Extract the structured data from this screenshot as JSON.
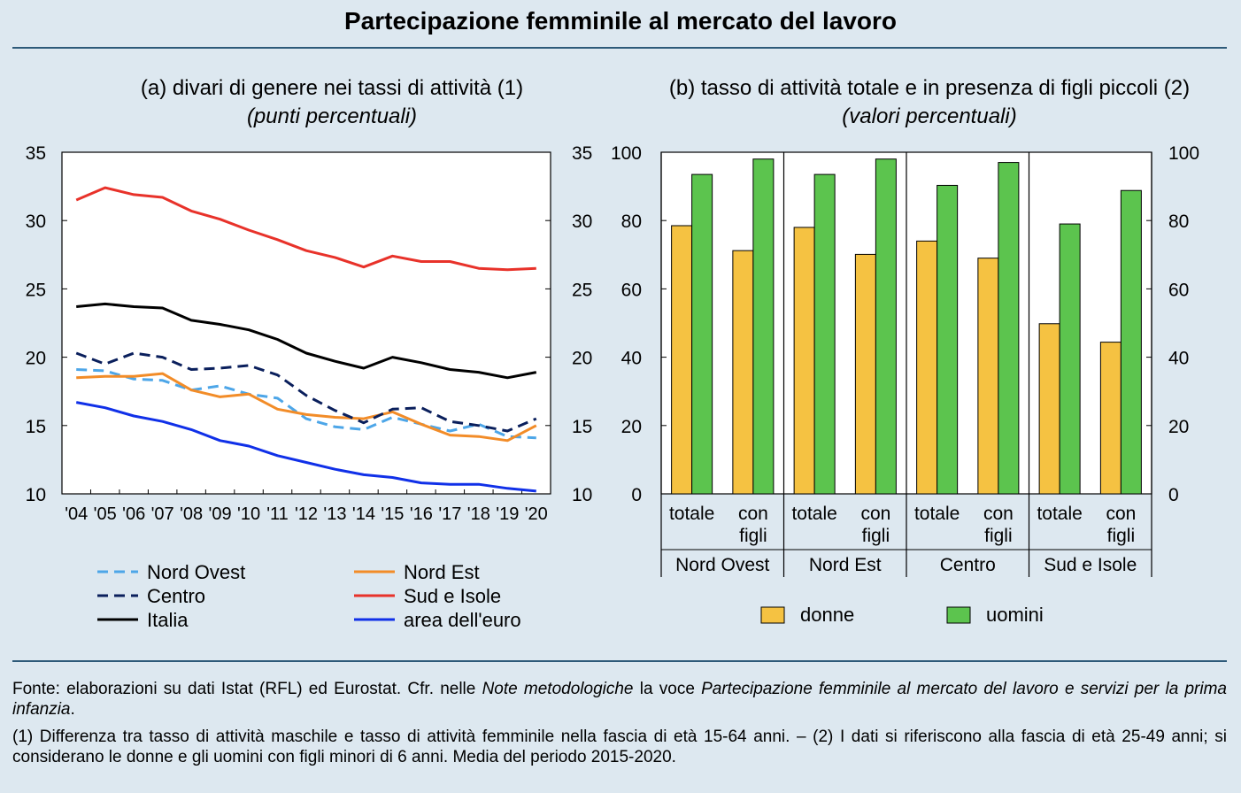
{
  "title": "Partecipazione femminile al mercato del lavoro",
  "panel_a": {
    "title": "(a) divari di genere nei tassi di attività (1)",
    "subtitle": "(punti percentuali)"
  },
  "panel_b": {
    "title": "(b) tasso di attività totale e in presenza di figli piccoli (2)",
    "subtitle": "(valori percentuali)"
  },
  "colors": {
    "background": "#dde8f0",
    "rule": "#2e5a79",
    "nord_ovest": "#4da6e8",
    "nord_est": "#f28c28",
    "centro": "#0a1f5c",
    "sud_isole": "#e8322a",
    "italia": "#000000",
    "euro": "#1030e8",
    "donne": "#f5c242",
    "uomini": "#5cc44e"
  },
  "chart_data": [
    {
      "type": "line",
      "x": [
        "'04",
        "'05",
        "'06",
        "'07",
        "'08",
        "'09",
        "'10",
        "'11",
        "'12",
        "'13",
        "'14",
        "'15",
        "'16",
        "'17",
        "'18",
        "'19",
        "'20"
      ],
      "ylim": [
        10,
        35
      ],
      "yticks": [
        10,
        15,
        20,
        25,
        30,
        35
      ],
      "series": [
        {
          "name": "Nord Ovest",
          "style": "dashed",
          "color": "#4da6e8",
          "values": [
            19.1,
            19.0,
            18.4,
            18.3,
            17.6,
            17.9,
            17.3,
            17.0,
            15.5,
            14.9,
            14.7,
            15.6,
            15.1,
            14.6,
            15.1,
            14.2,
            14.1
          ]
        },
        {
          "name": "Nord Est",
          "style": "solid",
          "color": "#f28c28",
          "values": [
            18.5,
            18.6,
            18.6,
            18.8,
            17.6,
            17.1,
            17.3,
            16.2,
            15.8,
            15.6,
            15.5,
            16.0,
            15.1,
            14.3,
            14.2,
            13.9,
            15.0
          ]
        },
        {
          "name": "Centro",
          "style": "dashed",
          "color": "#0a1f5c",
          "values": [
            20.3,
            19.5,
            20.3,
            20.0,
            19.1,
            19.2,
            19.4,
            18.7,
            17.2,
            16.1,
            15.2,
            16.2,
            16.3,
            15.3,
            15.0,
            14.6,
            15.5
          ]
        },
        {
          "name": "Sud e Isole",
          "style": "solid",
          "color": "#e8322a",
          "values": [
            31.5,
            32.4,
            31.9,
            31.7,
            30.7,
            30.1,
            29.3,
            28.6,
            27.8,
            27.3,
            26.6,
            27.4,
            27.0,
            27.0,
            26.5,
            26.4,
            26.5
          ]
        },
        {
          "name": "Italia",
          "style": "solid",
          "color": "#000000",
          "values": [
            23.7,
            23.9,
            23.7,
            23.6,
            22.7,
            22.4,
            22.0,
            21.3,
            20.3,
            19.7,
            19.2,
            20.0,
            19.6,
            19.1,
            18.9,
            18.5,
            18.9
          ]
        },
        {
          "name": "area dell'euro",
          "style": "solid",
          "color": "#1030e8",
          "values": [
            16.7,
            16.3,
            15.7,
            15.3,
            14.7,
            13.9,
            13.5,
            12.8,
            12.3,
            11.8,
            11.4,
            11.2,
            10.8,
            10.7,
            10.7,
            10.4,
            10.2
          ]
        }
      ],
      "legend": "below"
    },
    {
      "type": "bar",
      "groups": [
        {
          "label": "Nord Ovest",
          "categories": [
            "totale",
            "con figli"
          ]
        },
        {
          "label": "Nord Est",
          "categories": [
            "totale",
            "con figli"
          ]
        },
        {
          "label": "Centro",
          "categories": [
            "totale",
            "con figli"
          ]
        },
        {
          "label": "Sud e Isole",
          "categories": [
            "totale",
            "con figli"
          ]
        }
      ],
      "categories": [
        "totale",
        "con figli",
        "totale",
        "con figli",
        "totale",
        "con figli",
        "totale",
        "con figli"
      ],
      "ylim": [
        0,
        100
      ],
      "yticks": [
        0,
        20,
        40,
        60,
        80,
        100
      ],
      "series": [
        {
          "name": "donne",
          "color": "#f5c242",
          "values": [
            78.5,
            71.2,
            78.0,
            70.1,
            74.0,
            69.0,
            49.8,
            44.4
          ]
        },
        {
          "name": "uomini",
          "color": "#5cc44e",
          "values": [
            93.5,
            98.0,
            93.5,
            98.0,
            90.3,
            97.0,
            79.0,
            88.8
          ]
        }
      ],
      "legend": "below"
    }
  ],
  "footnote": {
    "p1_a": "Fonte: elaborazioni su dati Istat (RFL) ed Eurostat. Cfr. nelle ",
    "p1_b": "Note metodologiche",
    "p1_c": " la voce ",
    "p1_d": "Partecipazione femminile al mercato del lavoro e servizi per la prima infanzia",
    "p1_e": ".",
    "p2": "(1) Differenza tra tasso di attività maschile e tasso di attività femminile nella fascia di età 15-64 anni. – (2) I dati si riferiscono alla fascia di età 25-49 anni; si considerano le donne e gli uomini con figli minori di 6 anni. Media del periodo 2015-2020."
  }
}
